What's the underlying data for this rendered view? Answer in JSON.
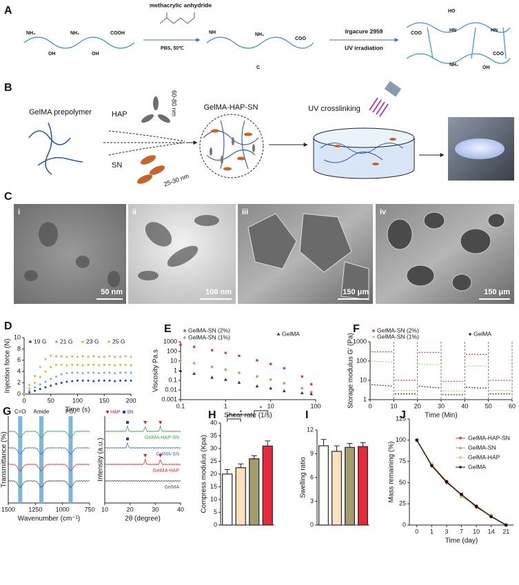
{
  "scheme_a": {
    "label": "A",
    "reagent": "methacrylic anhydride",
    "condition": "PBS, 50℃",
    "initiator": "Irgacure 2959",
    "process": "UV irradiation",
    "groups": [
      "NH₂",
      "NH₂",
      "COOH",
      "OH",
      "OH",
      "NH",
      "NH₂",
      "COO",
      "C",
      "HO",
      "HN",
      "HN",
      "COO",
      "NH₂",
      "OH",
      "COO"
    ]
  },
  "scheme_b": {
    "label": "B",
    "prepolymer": "GelMA prepolymer",
    "hap": "HAP",
    "hap_size": "60-80 nm",
    "sn": "SN",
    "sn_size": "25-30 nm",
    "composite": "GelMA-HAP-SN",
    "crosslinking": "UV crosslinking"
  },
  "micrographs": {
    "label": "C",
    "images": [
      {
        "label": "i",
        "scale": "50 nm"
      },
      {
        "label": "ii",
        "scale": "100 nm"
      },
      {
        "label": "iii",
        "scale": "150 μm"
      },
      {
        "label": "iv",
        "scale": "150 μm"
      }
    ]
  },
  "chart_data": [
    {
      "type": "scatter",
      "label": "D",
      "xlabel": "Time (s)",
      "ylabel": "Injection force (N)",
      "x": [
        0,
        10,
        20,
        30,
        40,
        50,
        60,
        70,
        80,
        90,
        100,
        110,
        120,
        130,
        140,
        150,
        160,
        170,
        180,
        190,
        200
      ],
      "xlim": [
        0,
        200
      ],
      "xticks": [
        0,
        50,
        100,
        150,
        200
      ],
      "ylim": [
        0,
        10
      ],
      "yticks": [
        0,
        2,
        4,
        6,
        8,
        10
      ],
      "series": [
        {
          "name": "19 G",
          "color": "#1a3fd6",
          "marker": "circle",
          "values": [
            0,
            0.3,
            0.6,
            0.9,
            1.2,
            1.5,
            1.8,
            2.0,
            2.2,
            2.3,
            2.4,
            2.4,
            2.4,
            2.3,
            2.4,
            2.4,
            2.4,
            2.3,
            2.4,
            2.4,
            2.4
          ]
        },
        {
          "name": "21 G",
          "color": "#5bb4ec",
          "marker": "circle",
          "values": [
            0,
            0.6,
            1.2,
            1.7,
            2.2,
            2.7,
            3.1,
            3.5,
            3.7,
            3.8,
            3.8,
            3.7,
            3.8,
            3.8,
            3.7,
            3.8,
            3.8,
            3.7,
            3.8,
            3.8,
            3.8
          ]
        },
        {
          "name": "23 G",
          "color": "#c8c21a",
          "marker": "circle",
          "values": [
            0,
            1.0,
            2.0,
            3.0,
            4.0,
            4.8,
            5.2,
            5.2,
            5.1,
            5.2,
            5.2,
            5.1,
            5.2,
            5.2,
            5.1,
            5.2,
            5.2,
            5.1,
            5.2,
            5.2,
            5.1
          ]
        },
        {
          "name": "25 G",
          "color": "#f5a04a",
          "marker": "circle",
          "values": [
            0,
            1.6,
            3.2,
            4.8,
            6.2,
            6.8,
            6.7,
            6.7,
            6.6,
            6.7,
            6.6,
            6.7,
            6.6,
            6.7,
            6.6,
            6.6,
            6.7,
            6.6,
            6.6,
            6.7,
            6.6
          ]
        }
      ]
    },
    {
      "type": "scatter",
      "label": "E",
      "xlabel": "Shear rate (1/s)",
      "ylabel": "Viscosity Pa.s",
      "xlog": true,
      "ylog": true,
      "x": [
        0.1,
        0.2,
        0.5,
        1,
        2,
        5,
        10,
        20,
        50,
        80
      ],
      "xlim": [
        0.1,
        100
      ],
      "xticks": [
        0.1,
        1,
        10,
        100
      ],
      "ylim": [
        0.001,
        1000
      ],
      "yticks": [
        0.001,
        0.01,
        0.1,
        1,
        10,
        100,
        1000
      ],
      "series": [
        {
          "name": "GelMA-SN (2%)",
          "color": "#e8352e",
          "marker": "circle",
          "values": [
            500,
            300,
            130,
            70,
            35,
            12,
            5,
            1.8,
            0.25,
            0.04
          ]
        },
        {
          "name": "GelMA-SN (1%)",
          "color": "#b8a56a",
          "marker": "diamond",
          "values": [
            12,
            6,
            2.5,
            1.3,
            0.6,
            0.25,
            0.12,
            0.05,
            0.015,
            0.006
          ]
        },
        {
          "name": "GelMA",
          "color": "#333333",
          "marker": "triangle",
          "values": [
            1,
            0.5,
            0.2,
            0.12,
            0.06,
            0.025,
            0.015,
            0.008,
            0.005,
            0.004
          ]
        }
      ]
    },
    {
      "type": "line",
      "label": "F",
      "xlabel": "Time (Min)",
      "ylabel": "Storage modulus G' (Pa)",
      "ylog": true,
      "line_style": "dashed",
      "x": [
        0.5,
        5,
        9.5,
        10,
        10.5,
        15,
        19.5,
        20,
        20.5,
        25,
        29.5,
        30,
        30.5,
        35,
        39.5,
        40,
        40.5,
        45,
        49.5,
        50,
        50.5,
        55,
        59.5
      ],
      "xlim": [
        0,
        60
      ],
      "xticks": [
        0,
        10,
        20,
        30,
        40,
        50,
        60
      ],
      "ylim": [
        1,
        1000
      ],
      "yticks": [
        1,
        10,
        100,
        1000
      ],
      "dividers": [
        10,
        20,
        30,
        40,
        50,
        60
      ],
      "series": [
        {
          "name": "GelMA-SN (2%)",
          "color": "#e8352e",
          "values": [
            300,
            300,
            300,
            null,
            10,
            10,
            10,
            null,
            280,
            280,
            280,
            null,
            9,
            9,
            9,
            null,
            220,
            220,
            220,
            null,
            10,
            10,
            10
          ]
        },
        {
          "name": "GelMA-SN (1%)",
          "color": "#c9c85a",
          "values": [
            100,
            95,
            90,
            null,
            3,
            3,
            3,
            null,
            70,
            68,
            65,
            null,
            2.8,
            2.8,
            2.8,
            null,
            55,
            55,
            55,
            null,
            3,
            3,
            3
          ]
        },
        {
          "name": "GelMA",
          "color": "#333333",
          "values": [
            6,
            5.5,
            5,
            null,
            2,
            2,
            2,
            null,
            5,
            4.5,
            4,
            null,
            1.8,
            1.8,
            1.8,
            null,
            4.5,
            4,
            4,
            null,
            2,
            2,
            2
          ]
        }
      ]
    },
    {
      "type": "spectrum",
      "label": "G",
      "xlabel": "Wavenumber (cm⁻¹)",
      "ylabel": "Transmittance (%)",
      "xlim": [
        1500,
        750
      ],
      "xticks": [
        1500,
        1250,
        1000,
        750
      ],
      "bands": [
        {
          "label": "C=O",
          "value": 1390
        },
        {
          "label": "Amide",
          "value": 1195
        },
        {
          "label": "PO₄",
          "value": 925
        }
      ],
      "traces": [
        {
          "color": "#3aa64a"
        },
        {
          "color": "#3a78c9"
        },
        {
          "color": "#e03030"
        },
        {
          "color": "#555555"
        }
      ]
    },
    {
      "type": "spectrum",
      "xlabel": "2θ (degree)",
      "ylabel": "Intensity (a.u.)",
      "xlim": [
        10,
        40
      ],
      "xticks": [
        10,
        20,
        30,
        40
      ],
      "legend": [
        {
          "name": "HAP",
          "color": "#e02020",
          "marker": "triangle-down"
        },
        {
          "name": "SN",
          "color": "#1f3fd0",
          "marker": "square"
        }
      ],
      "peaks": [
        {
          "legend": 0,
          "x": 26,
          "traces": [
            0,
            2
          ]
        },
        {
          "legend": 0,
          "x": 32,
          "traces": [
            0,
            2
          ]
        },
        {
          "legend": 1,
          "x": 19,
          "traces": [
            0,
            1
          ]
        }
      ],
      "traces": [
        {
          "name": "GelMA-HAP-SN",
          "color": "#3aa64a"
        },
        {
          "name": "GelMA-SN",
          "color": "#3a78c9"
        },
        {
          "name": "GelMA-HAP",
          "color": "#e03030"
        },
        {
          "name": "GelMA",
          "color": "#555555"
        }
      ]
    },
    {
      "type": "bar",
      "label": "H",
      "ylabel": "Compress modulus (Kpa)",
      "values": [
        20,
        22.5,
        26,
        31
      ],
      "errors": [
        1.8,
        1.5,
        1.2,
        2.0
      ],
      "colors": [
        "#ffffff",
        "#fde0bd",
        "#a39c6c",
        "#e8283c"
      ],
      "ylim": [
        0,
        40
      ],
      "yticks": [
        0,
        5,
        10,
        15,
        20,
        25,
        30,
        35,
        40
      ],
      "significance": [
        {
          "pair": [
            0,
            1
          ],
          "label": "*"
        },
        {
          "pair": [
            0,
            2
          ],
          "label": "*"
        },
        {
          "pair": [
            2,
            3
          ],
          "label": "*"
        }
      ]
    },
    {
      "type": "bar",
      "label": "I",
      "ylabel": "Swelling ratio",
      "values": [
        10.0,
        9.3,
        9.8,
        9.9
      ],
      "errors": [
        0.8,
        0.7,
        0.5,
        0.5
      ],
      "colors": [
        "#ffffff",
        "#fde0bd",
        "#a39c6c",
        "#e8283c"
      ],
      "ylim": [
        0,
        12
      ],
      "yticks": [
        0,
        3,
        6,
        9,
        12
      ]
    },
    {
      "type": "line",
      "label": "J",
      "xlabel": "Time (day)",
      "ylabel": "Mass remaining (%)",
      "categories": [
        "0",
        "1",
        "3",
        "7",
        "10",
        "14",
        "21"
      ],
      "ylim": [
        0,
        125
      ],
      "yticks": [
        0,
        25,
        50,
        75,
        100,
        125
      ],
      "series": [
        {
          "name": "GelMA-HAP-SN",
          "color": "#e8283c",
          "marker": "triangle-down",
          "values": [
            100,
            70,
            50,
            36,
            21,
            11,
            0
          ]
        },
        {
          "name": "GelMA-SN",
          "color": "#b5a36a",
          "marker": "triangle",
          "values": [
            100,
            71,
            51,
            34,
            22,
            10,
            0
          ]
        },
        {
          "name": "GelMA-HAP",
          "color": "#f7c58a",
          "marker": "square",
          "values": [
            100,
            72,
            52,
            35,
            23,
            11,
            0
          ]
        },
        {
          "name": "GelMA",
          "color": "#111111",
          "marker": "circle",
          "values": [
            100,
            70,
            51,
            36,
            22,
            10,
            0
          ]
        }
      ]
    }
  ]
}
